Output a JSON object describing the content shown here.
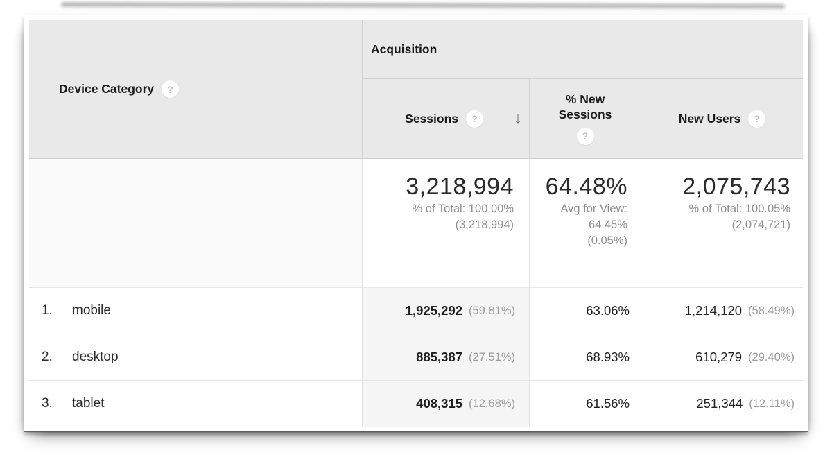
{
  "icons": {
    "help": "?",
    "sort_desc": "↓"
  },
  "colors": {
    "header_bg": "#e9e9e9",
    "sorted_column_bg": "#f5f5f5",
    "summary_dim_bg": "#fafafa",
    "primary_text": "#1f1f1f",
    "secondary_text": "#8e8e8e",
    "card_bg": "#ffffff"
  },
  "table": {
    "dimension_header": "Device Category",
    "group_header": "Acquisition",
    "columns": {
      "sessions": "Sessions",
      "new_sessions": "% New Sessions",
      "new_users": "New Users"
    },
    "summary": {
      "sessions": {
        "value": "3,218,994",
        "line1": "% of Total: 100.00%",
        "line2": "(3,218,994)"
      },
      "new_sessions": {
        "value": "64.48%",
        "line1": "Avg for View:",
        "line2": "64.45%",
        "line3": "(0.05%)"
      },
      "new_users": {
        "value": "2,075,743",
        "line1": "% of Total: 100.05%",
        "line2": "(2,074,721)"
      }
    },
    "rows": [
      {
        "index": "1.",
        "device": "mobile",
        "sessions": "1,925,292",
        "sessions_pct": "(59.81%)",
        "new_sessions": "63.06%",
        "new_users": "1,214,120",
        "new_users_pct": "(58.49%)"
      },
      {
        "index": "2.",
        "device": "desktop",
        "sessions": "885,387",
        "sessions_pct": "(27.51%)",
        "new_sessions": "68.93%",
        "new_users": "610,279",
        "new_users_pct": "(29.40%)"
      },
      {
        "index": "3.",
        "device": "tablet",
        "sessions": "408,315",
        "sessions_pct": "(12.68%)",
        "new_sessions": "61.56%",
        "new_users": "251,344",
        "new_users_pct": "(12.11%)"
      }
    ]
  },
  "chart_data": {
    "type": "table",
    "title": "Device Category — Acquisition",
    "columns": [
      "Device Category",
      "Sessions",
      "Sessions % of Total",
      "% New Sessions",
      "New Users",
      "New Users % of Total"
    ],
    "rows": [
      [
        "mobile",
        1925292,
        "59.81%",
        "63.06%",
        1214120,
        "58.49%"
      ],
      [
        "desktop",
        885387,
        "27.51%",
        "68.93%",
        610279,
        "29.40%"
      ],
      [
        "tablet",
        408315,
        "12.68%",
        "61.56%",
        251344,
        "12.11%"
      ]
    ],
    "totals": {
      "sessions": 3218994,
      "sessions_pct_of_total": "100.00%",
      "new_sessions_avg_for_view": "64.45%",
      "new_sessions_total": "64.48%",
      "new_users": 2075743,
      "new_users_pct_of_total": "100.05%",
      "new_users_base": 2074721
    }
  }
}
